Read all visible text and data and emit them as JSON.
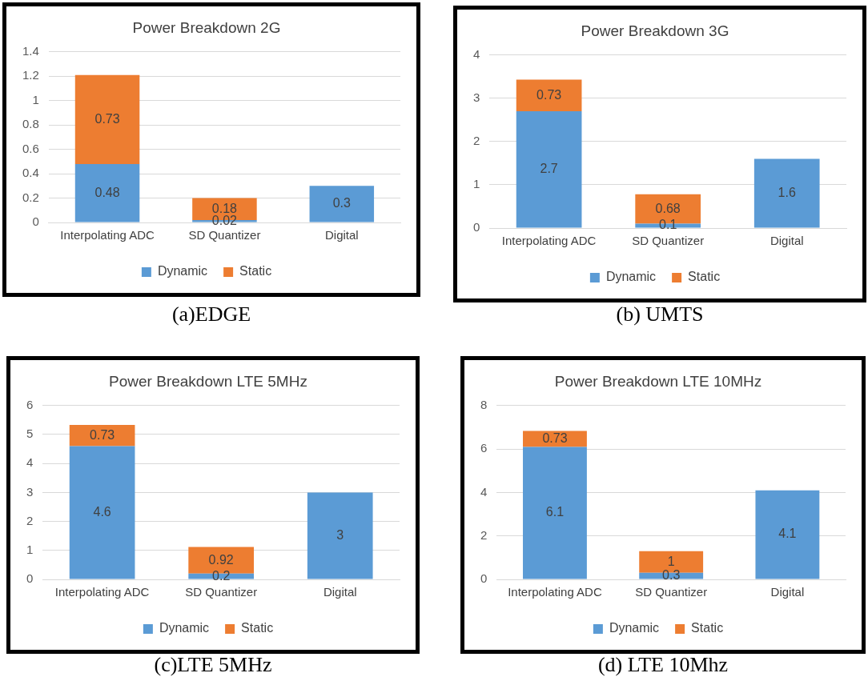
{
  "chart_data": [
    {
      "type": "bar",
      "title": "Power Breakdown 2G",
      "stacked": true,
      "categories": [
        "Interpolating ADC",
        "SD Quantizer",
        "Digital"
      ],
      "series": [
        {
          "name": "Dynamic",
          "color": "#5b9bd5",
          "values": [
            0.48,
            0.02,
            0.3
          ]
        },
        {
          "name": "Static",
          "color": "#ed7d31",
          "values": [
            0.73,
            0.18,
            null
          ]
        }
      ],
      "ylim": [
        0,
        1.4
      ],
      "yticks": [
        0,
        0.2,
        0.4,
        0.6,
        0.8,
        1,
        1.2,
        1.4
      ],
      "grid": "y",
      "legend": "bottom",
      "data_labels": true,
      "annotations": [
        "(a)EDGE"
      ]
    },
    {
      "type": "bar",
      "title": "Power Breakdown 3G",
      "stacked": true,
      "categories": [
        "Interpolating ADC",
        "SD Quantizer",
        "Digital"
      ],
      "series": [
        {
          "name": "Dynamic",
          "color": "#5b9bd5",
          "values": [
            2.7,
            0.1,
            1.6
          ]
        },
        {
          "name": "Static",
          "color": "#ed7d31",
          "values": [
            0.73,
            0.68,
            null
          ]
        }
      ],
      "ylim": [
        0,
        4
      ],
      "yticks": [
        0,
        1,
        2,
        3,
        4
      ],
      "grid": "y",
      "legend": "bottom",
      "data_labels": true,
      "annotations": [
        "(b) UMTS"
      ]
    },
    {
      "type": "bar",
      "title": "Power Breakdown LTE 5MHz",
      "stacked": true,
      "categories": [
        "Interpolating ADC",
        "SD Quantizer",
        "Digital"
      ],
      "series": [
        {
          "name": "Dynamic",
          "color": "#5b9bd5",
          "values": [
            4.6,
            0.2,
            3
          ]
        },
        {
          "name": "Static",
          "color": "#ed7d31",
          "values": [
            0.73,
            0.92,
            null
          ]
        }
      ],
      "ylim": [
        0,
        6
      ],
      "yticks": [
        0,
        1,
        2,
        3,
        4,
        5,
        6
      ],
      "grid": "y",
      "legend": "bottom",
      "data_labels": true,
      "annotations": [
        "(c)LTE 5MHz"
      ]
    },
    {
      "type": "bar",
      "title": "Power Breakdown LTE 10MHz",
      "stacked": true,
      "categories": [
        "Interpolating ADC",
        "SD Quantizer",
        "Digital"
      ],
      "series": [
        {
          "name": "Dynamic",
          "color": "#5b9bd5",
          "values": [
            6.1,
            0.3,
            4.1
          ]
        },
        {
          "name": "Static",
          "color": "#ed7d31",
          "values": [
            0.73,
            1,
            null
          ]
        }
      ],
      "ylim": [
        0,
        8
      ],
      "yticks": [
        0,
        2,
        4,
        6,
        8
      ],
      "grid": "y",
      "legend": "bottom",
      "data_labels": true,
      "annotations": [
        "(d) LTE 10Mhz"
      ]
    }
  ]
}
